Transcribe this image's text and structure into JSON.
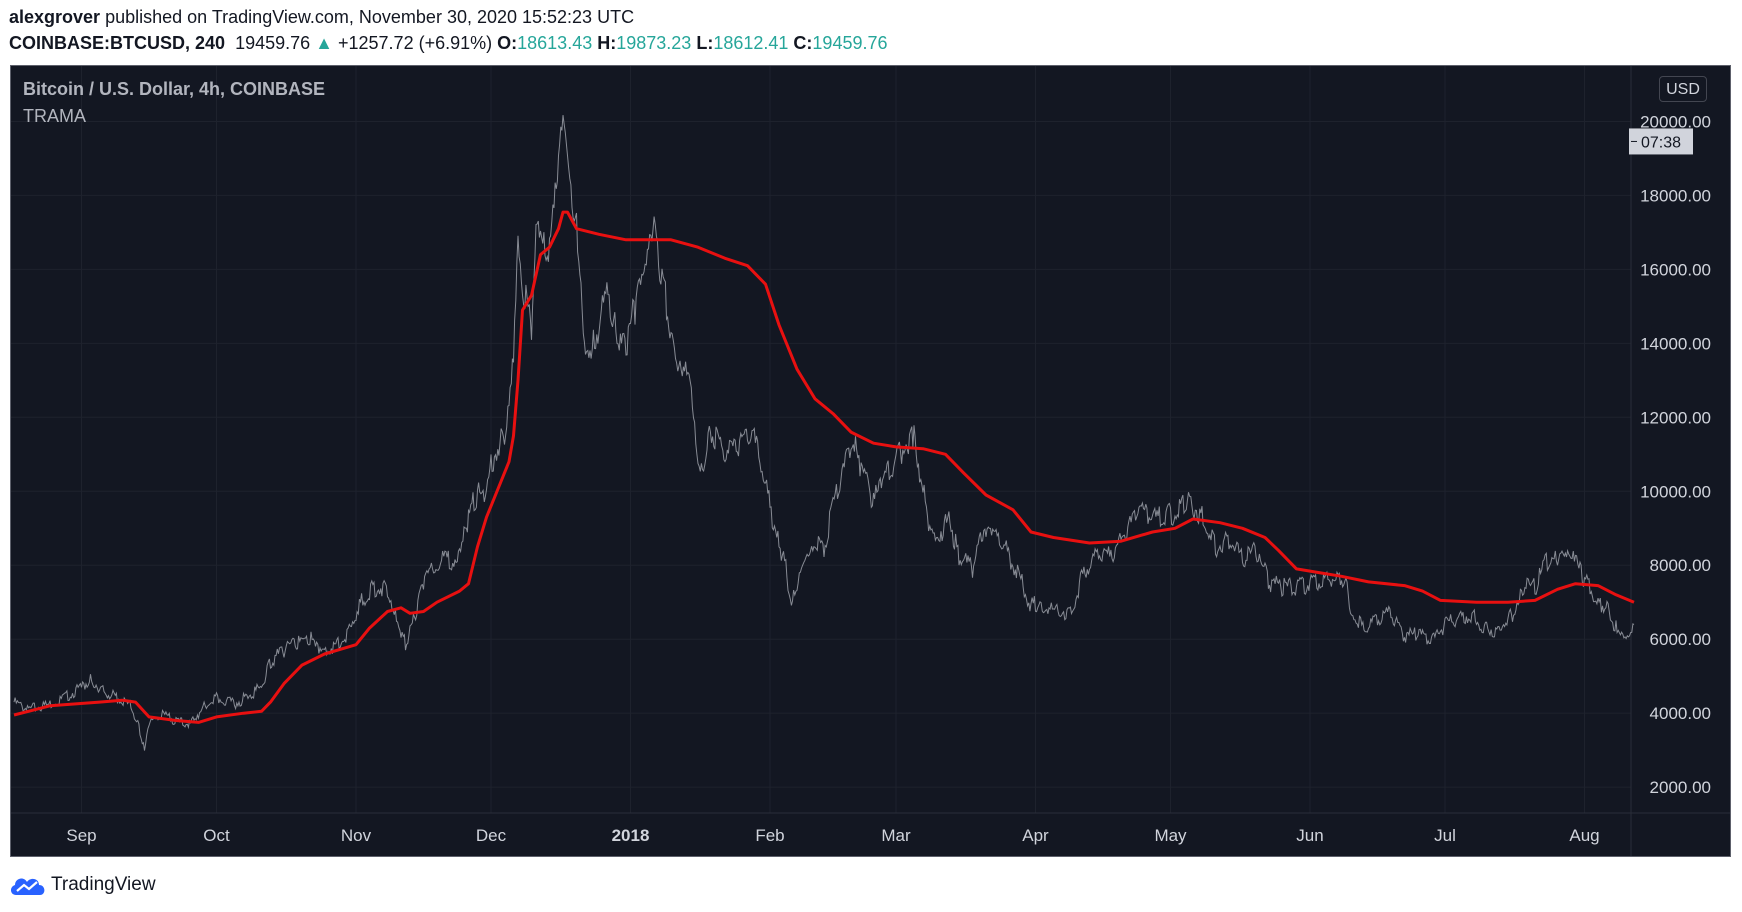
{
  "header": {
    "author": "alexgrover",
    "published_text": "published on TradingView.com, November 30, 2020 15:52:23 UTC",
    "symbol": "COINBASE:BTCUSD, 240",
    "price": "19459.76",
    "change_arrow": "▲",
    "change": "+1257.72 (+6.91%)",
    "open_label": "O:",
    "open": "18613.43",
    "high_label": "H:",
    "high": "19873.23",
    "low_label": "L:",
    "low": "18612.41",
    "close_label": "C:",
    "close": "19459.76"
  },
  "legend": {
    "title": "Bitcoin / U.S. Dollar, 4h, COINBASE",
    "indicator": "TRAMA"
  },
  "currency_button": "USD",
  "countdown": "07:38",
  "footer": {
    "brand": "TradingView"
  },
  "colors": {
    "background": "#131722",
    "price_line": "#9598a1",
    "trama_line": "#e81010",
    "up": "#26a69a"
  },
  "chart_data": {
    "type": "line",
    "title": "Bitcoin / U.S. Dollar, 4h, COINBASE",
    "xlabel": "",
    "ylabel": "",
    "ylim": [
      1300,
      21500
    ],
    "grid": true,
    "y_ticks": [
      "2000.00",
      "4000.00",
      "6000.00",
      "8000.00",
      "10000.00",
      "12000.00",
      "14000.00",
      "16000.00",
      "18000.00",
      "20000.00"
    ],
    "x_ticks": [
      "Sep",
      "Oct",
      "Nov",
      "Dec",
      "2018",
      "Feb",
      "Mar",
      "Apr",
      "May",
      "Jun",
      "Jul",
      "Aug"
    ],
    "x_tick_dates": [
      "2017-09-01",
      "2017-10-01",
      "2017-11-01",
      "2017-12-01",
      "2018-01-01",
      "2018-02-01",
      "2018-03-01",
      "2018-04-01",
      "2018-05-01",
      "2018-06-01",
      "2018-07-01",
      "2018-08-01"
    ],
    "x_range": [
      "2017-08-17",
      "2018-08-12"
    ],
    "series": [
      {
        "name": "Bitcoin / U.S. Dollar",
        "color": "#9598a1",
        "points": [
          [
            "2017-08-17",
            4300
          ],
          [
            "2017-08-20",
            4100
          ],
          [
            "2017-08-24",
            4200
          ],
          [
            "2017-08-28",
            4400
          ],
          [
            "2017-09-01",
            4700
          ],
          [
            "2017-09-03",
            4900
          ],
          [
            "2017-09-06",
            4600
          ],
          [
            "2017-09-09",
            4400
          ],
          [
            "2017-09-12",
            4200
          ],
          [
            "2017-09-14",
            3500
          ],
          [
            "2017-09-15",
            3050
          ],
          [
            "2017-09-16",
            3700
          ],
          [
            "2017-09-19",
            3950
          ],
          [
            "2017-09-22",
            3800
          ],
          [
            "2017-09-25",
            3700
          ],
          [
            "2017-09-28",
            4150
          ],
          [
            "2017-10-01",
            4400
          ],
          [
            "2017-10-05",
            4250
          ],
          [
            "2017-10-08",
            4450
          ],
          [
            "2017-10-11",
            4700
          ],
          [
            "2017-10-13",
            5400
          ],
          [
            "2017-10-16",
            5700
          ],
          [
            "2017-10-19",
            5900
          ],
          [
            "2017-10-22",
            6000
          ],
          [
            "2017-10-24",
            5600
          ],
          [
            "2017-10-27",
            5800
          ],
          [
            "2017-10-30",
            6150
          ],
          [
            "2017-11-02",
            7000
          ],
          [
            "2017-11-05",
            7400
          ],
          [
            "2017-11-08",
            7400
          ],
          [
            "2017-11-10",
            6600
          ],
          [
            "2017-11-12",
            5850
          ],
          [
            "2017-11-14",
            6600
          ],
          [
            "2017-11-16",
            7600
          ],
          [
            "2017-11-20",
            8100
          ],
          [
            "2017-11-24",
            8200
          ],
          [
            "2017-11-26",
            9300
          ],
          [
            "2017-11-28",
            10000
          ],
          [
            "2017-11-29",
            9800
          ],
          [
            "2017-12-01",
            10800
          ],
          [
            "2017-12-04",
            11500
          ],
          [
            "2017-12-06",
            13800
          ],
          [
            "2017-12-07",
            17100
          ],
          [
            "2017-12-08",
            15400
          ],
          [
            "2017-12-10",
            14500
          ],
          [
            "2017-12-11",
            16800
          ],
          [
            "2017-12-14",
            16400
          ],
          [
            "2017-12-16",
            18900
          ],
          [
            "2017-12-17",
            19600
          ],
          [
            "2017-12-18",
            18900
          ],
          [
            "2017-12-20",
            17500
          ],
          [
            "2017-12-22",
            13800
          ],
          [
            "2017-12-24",
            14000
          ],
          [
            "2017-12-27",
            15500
          ],
          [
            "2017-12-29",
            14100
          ],
          [
            "2017-12-31",
            13700
          ],
          [
            "2018-01-02",
            15000
          ],
          [
            "2018-01-04",
            15500
          ],
          [
            "2018-01-06",
            17000
          ],
          [
            "2018-01-08",
            15800
          ],
          [
            "2018-01-10",
            14200
          ],
          [
            "2018-01-12",
            13500
          ],
          [
            "2018-01-14",
            13600
          ],
          [
            "2018-01-16",
            11000
          ],
          [
            "2018-01-17",
            10800
          ],
          [
            "2018-01-19",
            11600
          ],
          [
            "2018-01-22",
            10900
          ],
          [
            "2018-01-25",
            11300
          ],
          [
            "2018-01-28",
            11600
          ],
          [
            "2018-01-31",
            10200
          ],
          [
            "2018-02-02",
            8900
          ],
          [
            "2018-02-04",
            8200
          ],
          [
            "2018-02-06",
            6950
          ],
          [
            "2018-02-08",
            8100
          ],
          [
            "2018-02-10",
            8600
          ],
          [
            "2018-02-13",
            8500
          ],
          [
            "2018-02-16",
            10100
          ],
          [
            "2018-02-20",
            11500
          ],
          [
            "2018-02-21",
            10700
          ],
          [
            "2018-02-24",
            9700
          ],
          [
            "2018-02-26",
            10300
          ],
          [
            "2018-03-01",
            10900
          ],
          [
            "2018-03-04",
            11400
          ],
          [
            "2018-03-05",
            11500
          ],
          [
            "2018-03-08",
            9300
          ],
          [
            "2018-03-10",
            8800
          ],
          [
            "2018-03-13",
            9200
          ],
          [
            "2018-03-15",
            8200
          ],
          [
            "2018-03-18",
            7900
          ],
          [
            "2018-03-20",
            8700
          ],
          [
            "2018-03-22",
            8800
          ],
          [
            "2018-03-25",
            8500
          ],
          [
            "2018-03-28",
            7800
          ],
          [
            "2018-03-31",
            6900
          ],
          [
            "2018-04-02",
            7000
          ],
          [
            "2018-04-06",
            6700
          ],
          [
            "2018-04-09",
            6800
          ],
          [
            "2018-04-12",
            7900
          ],
          [
            "2018-04-15",
            8300
          ],
          [
            "2018-04-18",
            8200
          ],
          [
            "2018-04-21",
            8900
          ],
          [
            "2018-04-24",
            9500
          ],
          [
            "2018-04-27",
            9300
          ],
          [
            "2018-04-30",
            9300
          ],
          [
            "2018-05-03",
            9500
          ],
          [
            "2018-05-05",
            9800
          ],
          [
            "2018-05-08",
            9300
          ],
          [
            "2018-05-11",
            8500
          ],
          [
            "2018-05-14",
            8700
          ],
          [
            "2018-05-17",
            8200
          ],
          [
            "2018-05-20",
            8400
          ],
          [
            "2018-05-23",
            7500
          ],
          [
            "2018-05-26",
            7400
          ],
          [
            "2018-05-29",
            7400
          ],
          [
            "2018-06-01",
            7500
          ],
          [
            "2018-06-04",
            7600
          ],
          [
            "2018-06-07",
            7700
          ],
          [
            "2018-06-09",
            7600
          ],
          [
            "2018-06-10",
            6800
          ],
          [
            "2018-06-13",
            6300
          ],
          [
            "2018-06-16",
            6500
          ],
          [
            "2018-06-19",
            6700
          ],
          [
            "2018-06-22",
            6050
          ],
          [
            "2018-06-25",
            6200
          ],
          [
            "2018-06-28",
            5900
          ],
          [
            "2018-07-01",
            6400
          ],
          [
            "2018-07-04",
            6600
          ],
          [
            "2018-07-07",
            6700
          ],
          [
            "2018-07-10",
            6300
          ],
          [
            "2018-07-13",
            6250
          ],
          [
            "2018-07-16",
            6700
          ],
          [
            "2018-07-18",
            7400
          ],
          [
            "2018-07-21",
            7400
          ],
          [
            "2018-07-24",
            8200
          ],
          [
            "2018-07-26",
            8100
          ],
          [
            "2018-07-28",
            8200
          ],
          [
            "2018-07-30",
            8100
          ],
          [
            "2018-08-01",
            7600
          ],
          [
            "2018-08-04",
            7000
          ],
          [
            "2018-08-06",
            6900
          ],
          [
            "2018-08-08",
            6300
          ],
          [
            "2018-08-10",
            6200
          ],
          [
            "2018-08-12",
            6400
          ]
        ]
      },
      {
        "name": "TRAMA",
        "color": "#e81010",
        "points": [
          [
            "2017-08-17",
            3950
          ],
          [
            "2017-08-25",
            4200
          ],
          [
            "2017-09-05",
            4300
          ],
          [
            "2017-09-10",
            4350
          ],
          [
            "2017-09-13",
            4300
          ],
          [
            "2017-09-16",
            3900
          ],
          [
            "2017-09-22",
            3800
          ],
          [
            "2017-09-27",
            3750
          ],
          [
            "2017-10-01",
            3900
          ],
          [
            "2017-10-07",
            4000
          ],
          [
            "2017-10-11",
            4050
          ],
          [
            "2017-10-13",
            4300
          ],
          [
            "2017-10-16",
            4800
          ],
          [
            "2017-10-20",
            5300
          ],
          [
            "2017-10-25",
            5600
          ],
          [
            "2017-11-01",
            5850
          ],
          [
            "2017-11-04",
            6300
          ],
          [
            "2017-11-08",
            6750
          ],
          [
            "2017-11-11",
            6850
          ],
          [
            "2017-11-13",
            6700
          ],
          [
            "2017-11-16",
            6750
          ],
          [
            "2017-11-19",
            7000
          ],
          [
            "2017-11-24",
            7300
          ],
          [
            "2017-11-26",
            7500
          ],
          [
            "2017-11-28",
            8500
          ],
          [
            "2017-11-30",
            9300
          ],
          [
            "2017-12-03",
            10200
          ],
          [
            "2017-12-05",
            10800
          ],
          [
            "2017-12-06",
            11500
          ],
          [
            "2017-12-07",
            13000
          ],
          [
            "2017-12-08",
            14900
          ],
          [
            "2017-12-10",
            15300
          ],
          [
            "2017-12-12",
            16400
          ],
          [
            "2017-12-14",
            16600
          ],
          [
            "2017-12-16",
            17100
          ],
          [
            "2017-12-17",
            17550
          ],
          [
            "2017-12-18",
            17550
          ],
          [
            "2017-12-20",
            17100
          ],
          [
            "2017-12-25",
            16950
          ],
          [
            "2017-12-31",
            16800
          ],
          [
            "2018-01-10",
            16800
          ],
          [
            "2018-01-16",
            16600
          ],
          [
            "2018-01-22",
            16300
          ],
          [
            "2018-01-27",
            16100
          ],
          [
            "2018-01-31",
            15600
          ],
          [
            "2018-02-03",
            14500
          ],
          [
            "2018-02-07",
            13300
          ],
          [
            "2018-02-11",
            12500
          ],
          [
            "2018-02-15",
            12100
          ],
          [
            "2018-02-19",
            11600
          ],
          [
            "2018-02-24",
            11300
          ],
          [
            "2018-03-01",
            11200
          ],
          [
            "2018-03-07",
            11150
          ],
          [
            "2018-03-12",
            11000
          ],
          [
            "2018-03-16",
            10500
          ],
          [
            "2018-03-21",
            9900
          ],
          [
            "2018-03-27",
            9500
          ],
          [
            "2018-03-31",
            8900
          ],
          [
            "2018-04-05",
            8750
          ],
          [
            "2018-04-13",
            8600
          ],
          [
            "2018-04-20",
            8650
          ],
          [
            "2018-04-27",
            8900
          ],
          [
            "2018-05-02",
            9000
          ],
          [
            "2018-05-06",
            9250
          ],
          [
            "2018-05-12",
            9150
          ],
          [
            "2018-05-17",
            9000
          ],
          [
            "2018-05-22",
            8750
          ],
          [
            "2018-05-25",
            8400
          ],
          [
            "2018-05-29",
            7900
          ],
          [
            "2018-06-03",
            7800
          ],
          [
            "2018-06-08",
            7700
          ],
          [
            "2018-06-14",
            7550
          ],
          [
            "2018-06-22",
            7450
          ],
          [
            "2018-06-26",
            7300
          ],
          [
            "2018-06-30",
            7050
          ],
          [
            "2018-07-08",
            7000
          ],
          [
            "2018-07-15",
            7000
          ],
          [
            "2018-07-21",
            7050
          ],
          [
            "2018-07-26",
            7350
          ],
          [
            "2018-07-30",
            7500
          ],
          [
            "2018-08-04",
            7450
          ],
          [
            "2018-08-08",
            7200
          ],
          [
            "2018-08-12",
            7000
          ]
        ]
      }
    ]
  }
}
